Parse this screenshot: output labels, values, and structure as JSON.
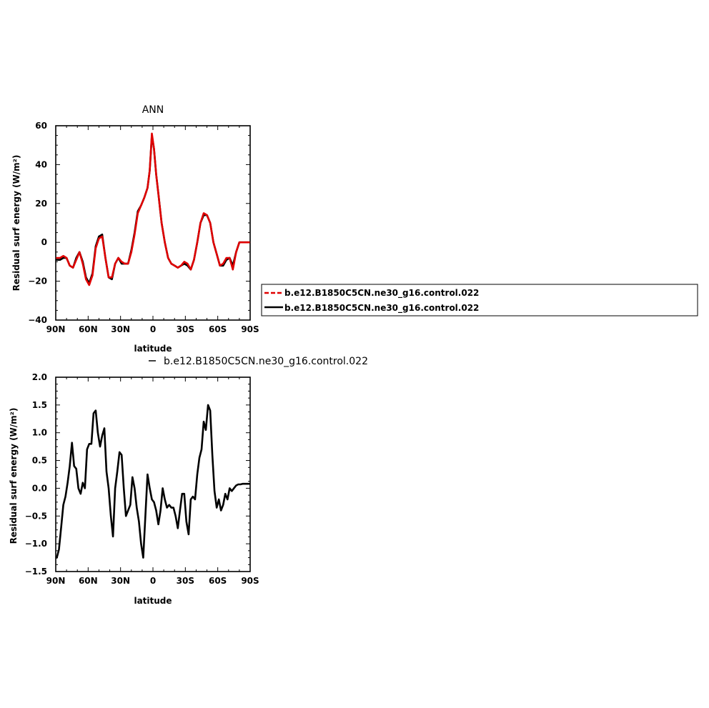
{
  "chart_data": [
    {
      "type": "line",
      "title": "ANN",
      "xlabel": "latitude",
      "ylabel": "Residual surf energy  (W/m²)",
      "xlim": [
        90,
        -90
      ],
      "ylim": [
        -40,
        60
      ],
      "x_ticks": [
        90,
        60,
        30,
        0,
        -30,
        -60,
        -90
      ],
      "x_tick_labels": [
        "90N",
        "60N",
        "30N",
        "0",
        "30S",
        "60S",
        "90S"
      ],
      "y_ticks": [
        -40,
        -20,
        0,
        20,
        40,
        60
      ],
      "y_tick_labels": [
        "−40",
        "−20",
        "0",
        "20",
        "40",
        "60"
      ],
      "legend": "right",
      "legend_entries": [
        "b.e12.B1850C5CN.ne30_g16.control.022",
        "b.e12.B1850C5CN.ne30_g16.control.022"
      ],
      "series": [
        {
          "name": "b.e12.B1850C5CN.ne30_g16.control.022",
          "color": "#000000",
          "x": [
            89,
            86,
            83,
            80,
            77,
            74,
            71,
            68,
            65,
            62,
            59,
            56,
            53,
            50,
            47,
            44,
            41,
            38,
            35,
            32,
            29,
            26,
            23,
            20,
            17,
            14,
            11,
            8,
            5,
            3,
            1,
            -1,
            -3,
            -5,
            -8,
            -11,
            -14,
            -17,
            -20,
            -23,
            -26,
            -29,
            -32,
            -35,
            -38,
            -41,
            -44,
            -47,
            -50,
            -53,
            -56,
            -59,
            -62,
            -65,
            -68,
            -71,
            -74,
            -77,
            -80,
            -83,
            -86,
            -89
          ],
          "y": [
            -9,
            -9,
            -8,
            -8,
            -12,
            -13,
            -8,
            -5,
            -10,
            -18,
            -21,
            -16,
            -2,
            3,
            4,
            -8,
            -18,
            -19,
            -11,
            -8,
            -11,
            -11,
            -11,
            -4,
            5,
            16,
            19,
            23,
            28,
            37,
            55,
            48,
            35,
            25,
            10,
            0,
            -8,
            -11,
            -12,
            -13,
            -12,
            -11,
            -12,
            -14,
            -9,
            0,
            10,
            14,
            14,
            10,
            0,
            -6,
            -12,
            -12,
            -9,
            -8,
            -12,
            -5,
            0,
            0,
            0,
            0
          ]
        },
        {
          "name": "b.e12.B1850C5CN.ne30_g16.control.022",
          "color": "#e00000",
          "x": [
            89,
            86,
            83,
            80,
            77,
            74,
            71,
            68,
            65,
            62,
            59,
            56,
            53,
            50,
            47,
            44,
            41,
            38,
            35,
            32,
            29,
            26,
            23,
            20,
            17,
            14,
            11,
            8,
            5,
            3,
            1,
            -1,
            -3,
            -5,
            -8,
            -11,
            -14,
            -17,
            -20,
            -23,
            -26,
            -29,
            -32,
            -35,
            -38,
            -41,
            -44,
            -47,
            -50,
            -53,
            -56,
            -59,
            -62,
            -65,
            -68,
            -71,
            -74,
            -77,
            -80,
            -83,
            -86,
            -89
          ],
          "y": [
            -8,
            -8,
            -7,
            -8,
            -12,
            -13,
            -9,
            -5,
            -11,
            -19,
            -22,
            -17,
            -3,
            2,
            3,
            -8,
            -18,
            -18,
            -11,
            -8,
            -10,
            -11,
            -11,
            -5,
            4,
            15,
            19,
            23,
            28,
            37,
            56,
            48,
            35,
            25,
            10,
            0,
            -8,
            -11,
            -12,
            -13,
            -12,
            -10,
            -11,
            -14,
            -9,
            0,
            10,
            15,
            14,
            10,
            0,
            -6,
            -12,
            -11,
            -8,
            -8,
            -14,
            -5,
            0,
            0,
            0,
            0
          ]
        }
      ]
    },
    {
      "type": "line",
      "title": "",
      "xlabel": "latitude",
      "ylabel": "Residual surf energy  (W/m²)",
      "xlim": [
        90,
        -90
      ],
      "ylim": [
        -1.5,
        2.0
      ],
      "x_ticks": [
        90,
        60,
        30,
        0,
        -30,
        -60,
        -90
      ],
      "x_tick_labels": [
        "90N",
        "60N",
        "30N",
        "0",
        "30S",
        "60S",
        "90S"
      ],
      "y_ticks": [
        -1.5,
        -1.0,
        -0.5,
        0.0,
        0.5,
        1.0,
        1.5,
        2.0
      ],
      "y_tick_labels": [
        "−1.5",
        "−1.0",
        "−0.5",
        "0.0",
        "0.5",
        "1.0",
        "1.5",
        "2.0"
      ],
      "legend": "top",
      "legend_entries": [
        "b.e12.B1850C5CN.ne30_g16.control.022"
      ],
      "series": [
        {
          "name": "b.e12.B1850C5CN.ne30_g16.control.022",
          "color": "#000000",
          "x": [
            89,
            87,
            85,
            83,
            81,
            79,
            77,
            75,
            73,
            71,
            69,
            67,
            65,
            63,
            61,
            59,
            57,
            55,
            53,
            51,
            49,
            47,
            45,
            43,
            41,
            39,
            37,
            35,
            33,
            31,
            29,
            27,
            25,
            23,
            21,
            19,
            17,
            15,
            13,
            11,
            9,
            7,
            5,
            3,
            1,
            -1,
            -3,
            -5,
            -7,
            -9,
            -11,
            -13,
            -15,
            -17,
            -19,
            -21,
            -23,
            -25,
            -27,
            -29,
            -31,
            -33,
            -35,
            -37,
            -39,
            -41,
            -43,
            -45,
            -47,
            -49,
            -51,
            -53,
            -55,
            -57,
            -59,
            -61,
            -63,
            -65,
            -67,
            -69,
            -71,
            -73,
            -75,
            -77,
            -79,
            -81,
            -83,
            -85,
            -87,
            -89
          ],
          "y": [
            -1.25,
            -1.1,
            -0.7,
            -0.3,
            -0.15,
            0.1,
            0.4,
            0.82,
            0.4,
            0.35,
            0.0,
            -0.1,
            0.1,
            0.0,
            0.7,
            0.8,
            0.8,
            1.35,
            1.4,
            1.0,
            0.75,
            0.95,
            1.08,
            0.3,
            0.0,
            -0.5,
            -0.87,
            0.0,
            0.3,
            0.65,
            0.6,
            0.0,
            -0.5,
            -0.4,
            -0.3,
            0.2,
            0.0,
            -0.35,
            -0.6,
            -1.0,
            -1.25,
            -0.5,
            0.25,
            0.0,
            -0.2,
            -0.25,
            -0.4,
            -0.65,
            -0.4,
            0.0,
            -0.2,
            -0.35,
            -0.3,
            -0.35,
            -0.35,
            -0.5,
            -0.72,
            -0.4,
            -0.1,
            -0.1,
            -0.6,
            -0.83,
            -0.2,
            -0.15,
            -0.2,
            0.25,
            0.55,
            0.7,
            1.2,
            1.05,
            1.5,
            1.4,
            0.6,
            -0.05,
            -0.35,
            -0.2,
            -0.4,
            -0.3,
            -0.1,
            -0.2,
            0.0,
            -0.05,
            0.0,
            0.05,
            0.07,
            0.07,
            0.08,
            0.08,
            0.08,
            0.08
          ]
        }
      ]
    }
  ]
}
